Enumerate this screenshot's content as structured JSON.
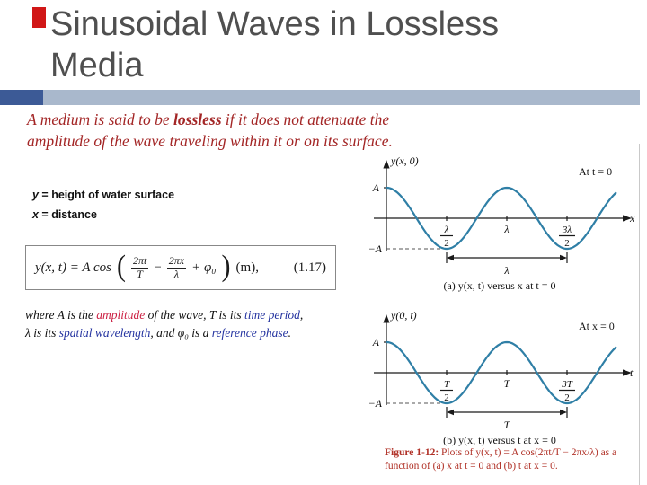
{
  "colors": {
    "accent_red": "#d11717",
    "bar_dark": "#3c5a96",
    "bar_light": "#a9b8cc",
    "title_gray": "#4f4f4f",
    "intro_red": "#a32626",
    "kw_red": "#cc2244",
    "kw_blue": "#2433a0",
    "wave": "#2f7fa6",
    "caption_red": "#b03026"
  },
  "slide": {
    "title": "Sinusoidal Waves in Lossless Media"
  },
  "intro": {
    "line1": [
      {
        "t": "A medium is said to be "
      },
      {
        "t": "lossless",
        "b": true
      },
      {
        "t": " if it does not attenuate the"
      }
    ],
    "line2": [
      {
        "t": "amplitude of the wave traveling within it or on its surface."
      }
    ]
  },
  "definitions": {
    "line1": [
      {
        "t": "y",
        "i": true
      },
      {
        "t": " = height of water surface"
      }
    ],
    "line2": [
      {
        "t": "x",
        "i": true
      },
      {
        "t": " = distance"
      }
    ]
  },
  "equation": {
    "lhs": "y(x, t) = A cos",
    "paren_open": "(",
    "frac1_num": "2πt",
    "frac1_den": "T",
    "operator_minus": "−",
    "frac2_num": "2πx",
    "frac2_den": "λ",
    "phase_term": "+ φ₀",
    "paren_close": ")",
    "units": "(m),",
    "eq_number": "(1.17)"
  },
  "where": {
    "line1": [
      {
        "t": "where A is the "
      },
      {
        "t": "amplitude",
        "c": "#cc2244"
      },
      {
        "t": " of the wave, T is its "
      },
      {
        "t": "time period",
        "c": "#2433a0"
      },
      {
        "t": ","
      }
    ],
    "line2": [
      {
        "t": "λ is its "
      },
      {
        "t": "spatial wavelength",
        "c": "#2433a0"
      },
      {
        "t": ", and φ₀ is a "
      },
      {
        "t": "reference phase",
        "c": "#2433a0"
      },
      {
        "t": "."
      }
    ]
  },
  "figure": {
    "caption": [
      {
        "t": "Figure 1-12:  ",
        "b": true
      },
      {
        "t": "Plots of y(x, t) = A cos(2πt/T − 2πx/λ) as a function of (a) x at t = 0 and (b) t at x = 0."
      }
    ]
  },
  "chart_data": [
    {
      "type": "line",
      "function": "y(x, 0) = A cos(2πx/λ)",
      "y_axis_label": "y(x, 0)",
      "annotation": "At t = 0",
      "x_axis_label": "x",
      "x_ticks": [
        {
          "num": "λ",
          "den": "2",
          "u": 0.5
        },
        {
          "label": "λ",
          "u": 1
        },
        {
          "num": "3λ",
          "den": "2",
          "u": 1.5
        }
      ],
      "y_pos_label": "A",
      "y_neg_label": "−A",
      "amplitude": 1,
      "x_max_u": 1.92,
      "ylim": [
        -1,
        1
      ],
      "span_label": "λ",
      "span_from_u": 0.5,
      "span_to_u": 1.5,
      "caption": "(a) y(x, t) versus x at t = 0"
    },
    {
      "type": "line",
      "function": "y(0, t) = A cos(2πt/T)",
      "y_axis_label": "y(0, t)",
      "annotation": "At x = 0",
      "x_axis_label": "t",
      "x_ticks": [
        {
          "num": "T",
          "den": "2",
          "u": 0.5
        },
        {
          "label": "T",
          "u": 1
        },
        {
          "num": "3T",
          "den": "2",
          "u": 1.5
        }
      ],
      "y_pos_label": "A",
      "y_neg_label": "−A",
      "amplitude": 1,
      "x_max_u": 1.92,
      "ylim": [
        -1,
        1
      ],
      "span_label": "T",
      "span_from_u": 0.5,
      "span_to_u": 1.5,
      "caption": "(b) y(x, t) versus t at x = 0"
    }
  ]
}
